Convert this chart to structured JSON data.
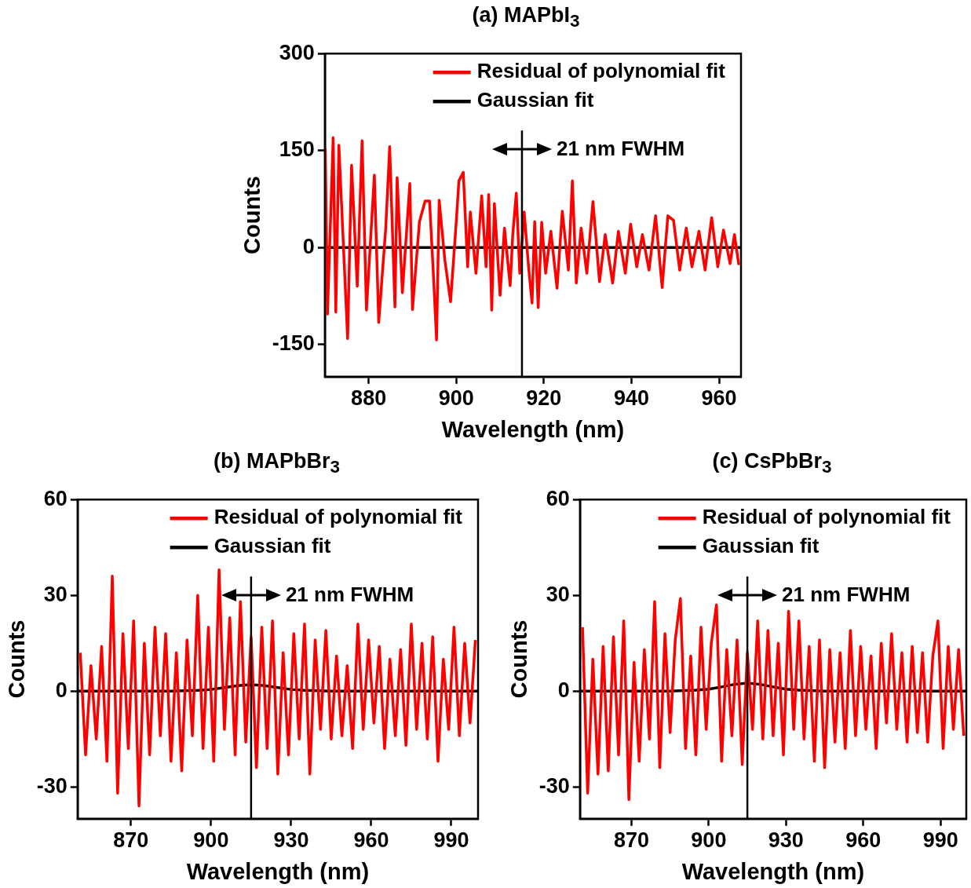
{
  "chart_data": [
    {
      "type": "line",
      "title": "(a) MAPbI$_{3}$",
      "xlabel": "Wavelength (nm)",
      "ylabel": "Counts",
      "xlim": [
        870,
        965
      ],
      "xticks": [
        880,
        900,
        920,
        940,
        960
      ],
      "ylim": [
        -200,
        300
      ],
      "yticks": [
        -150,
        0,
        150,
        300
      ],
      "grid": false,
      "legend": "top right",
      "series": [
        {
          "name": "Residual of polynomial fit",
          "color": "#ff0000",
          "x": [
            870.1,
            870.6,
            871.9,
            872.5,
            873.2,
            875.2,
            876.1,
            877.4,
            878.5,
            879.5,
            881.3,
            882.3,
            883.9,
            884.8,
            886.0,
            886.5,
            887.7,
            889.4,
            890.0,
            891.6,
            892.9,
            893.9,
            894.8,
            895.5,
            896.1,
            897.4,
            898.7,
            900.0,
            900.6,
            901.6,
            902.6,
            903.2,
            904.5,
            905.8,
            906.8,
            907.4,
            908.1,
            908.7,
            910.0,
            911.0,
            912.3,
            912.9,
            913.7,
            914.5,
            915.5,
            916.5,
            917.3,
            917.9,
            918.7,
            919.5,
            920.4,
            921.6,
            923.0,
            924.2,
            925.6,
            926.5,
            927.4,
            928.5,
            929.8,
            931.2,
            932.7,
            934.0,
            935.7,
            937.0,
            938.6,
            939.8,
            941.2,
            942.5,
            944.0,
            945.5,
            947.0,
            948.3,
            949.6,
            951.0,
            952.5,
            953.8,
            955.4,
            956.8,
            958.3,
            959.7,
            961.0,
            962.5,
            963.5,
            964.5
          ],
          "values": [
            154,
            -103,
            170,
            -100,
            158,
            -141,
            127,
            -60,
            165,
            -97,
            112,
            -116,
            30,
            156,
            -92,
            108,
            -70,
            99,
            -96,
            40,
            72,
            72,
            -45,
            -143,
            73,
            -20,
            -84,
            40,
            103,
            116,
            -30,
            55,
            -40,
            80,
            -30,
            82,
            -97,
            68,
            -74,
            30,
            -59,
            20,
            84,
            -40,
            55,
            -30,
            -86,
            40,
            -93,
            39,
            -40,
            25,
            -63,
            56,
            -35,
            103,
            -55,
            30,
            -40,
            71,
            -53,
            20,
            -55,
            25,
            -40,
            36,
            -30,
            20,
            -35,
            49,
            -62,
            49,
            42,
            -35,
            30,
            -30,
            25,
            -35,
            46,
            -30,
            27,
            -25,
            20,
            -27
          ]
        },
        {
          "name": "Gaussian fit",
          "color": "#000000",
          "x": [
            870,
            965
          ],
          "values": [
            0,
            0
          ]
        }
      ],
      "ref_lines": [
        {
          "axis": "x",
          "value": 915,
          "color": "#000000"
        }
      ],
      "annotations": [
        "21 nm FWHM"
      ]
    },
    {
      "type": "line",
      "title": "(b) MAPbBr$_{3}$",
      "xlabel": "Wavelength (nm)",
      "ylabel": "Counts",
      "xlim": [
        850,
        1000
      ],
      "xticks": [
        870,
        900,
        930,
        960,
        990
      ],
      "ylim": [
        -40,
        60
      ],
      "yticks": [
        -30,
        0,
        30,
        60
      ],
      "grid": false,
      "legend": "top right",
      "series": [
        {
          "name": "Residual of polynomial fit",
          "color": "#ff0000",
          "x": [
            851,
            853,
            855,
            857,
            859,
            861,
            863,
            865,
            867,
            869,
            871,
            873,
            875,
            877,
            879,
            881,
            883,
            885,
            887,
            889,
            891,
            893,
            895,
            897,
            899,
            901,
            903,
            905,
            907,
            909,
            911,
            913,
            915,
            917,
            919,
            921,
            923,
            925,
            927,
            929,
            931,
            933,
            935,
            937,
            939,
            941,
            943,
            945,
            947,
            949,
            951,
            953,
            955,
            957,
            959,
            961,
            963,
            965,
            967,
            969,
            971,
            973,
            975,
            977,
            979,
            981,
            983,
            985,
            987,
            989,
            991,
            993,
            995,
            997,
            999
          ],
          "values": [
            12,
            -20,
            8,
            -15,
            14,
            -22,
            36,
            -32,
            18,
            -18,
            22,
            -36,
            15,
            -20,
            20,
            -14,
            18,
            -22,
            12,
            -25,
            16,
            -14,
            30,
            -18,
            20,
            -22,
            38,
            -12,
            23,
            -20,
            28,
            -16,
            17,
            -24,
            20,
            -18,
            22,
            -26,
            12,
            -20,
            18,
            -15,
            21,
            -26,
            16,
            -12,
            19,
            -15,
            11,
            -14,
            8,
            -18,
            21,
            -12,
            16,
            -10,
            14,
            -18,
            10,
            -14,
            13,
            -17,
            21,
            -12,
            15,
            -15,
            17,
            -22,
            10,
            -12,
            20,
            -14,
            15,
            -10,
            16
          ]
        },
        {
          "name": "Gaussian fit",
          "color": "#000000",
          "x": [
            850,
            885,
            895,
            900,
            905,
            910,
            915,
            920,
            925,
            930,
            935,
            945,
            1000
          ],
          "values": [
            0,
            0,
            0.2,
            0.5,
            1.1,
            1.7,
            2,
            1.7,
            1.1,
            0.5,
            0.2,
            0,
            0
          ]
        }
      ],
      "ref_lines": [
        {
          "axis": "x",
          "value": 915,
          "color": "#000000"
        }
      ],
      "annotations": [
        "21 nm FWHM"
      ]
    },
    {
      "type": "line",
      "title": "(c) CsPbBr$_{3}$",
      "xlabel": "Wavelength (nm)",
      "ylabel": "Counts",
      "xlim": [
        850,
        1000
      ],
      "xticks": [
        870,
        900,
        930,
        960,
        990
      ],
      "ylim": [
        -40,
        60
      ],
      "yticks": [
        -30,
        0,
        30,
        60
      ],
      "grid": false,
      "legend": "top right",
      "series": [
        {
          "name": "Residual of polynomial fit",
          "color": "#ff0000",
          "x": [
            851,
            853,
            855,
            857,
            859,
            861,
            863,
            865,
            867,
            869,
            871,
            873,
            875,
            877,
            879,
            881,
            883,
            885,
            887,
            889,
            891,
            893,
            895,
            897,
            899,
            901,
            903,
            905,
            907,
            909,
            911,
            913,
            915,
            917,
            919,
            921,
            923,
            925,
            927,
            929,
            931,
            933,
            935,
            937,
            939,
            941,
            943,
            945,
            947,
            949,
            951,
            953,
            955,
            957,
            959,
            961,
            963,
            965,
            967,
            969,
            971,
            973,
            975,
            977,
            979,
            981,
            983,
            985,
            987,
            989,
            991,
            993,
            995,
            997,
            999
          ],
          "values": [
            20,
            -32,
            10,
            -26,
            14,
            -25,
            17,
            -20,
            22,
            -34,
            9,
            -22,
            13,
            -15,
            28,
            -24,
            18,
            -13,
            16,
            29,
            -18,
            11,
            -20,
            20,
            -12,
            15,
            27,
            -22,
            13,
            -14,
            16,
            -23,
            12,
            -12,
            22,
            -15,
            19,
            -14,
            15,
            -20,
            25,
            -12,
            22,
            -15,
            14,
            -22,
            16,
            -24,
            13,
            -16,
            12,
            -18,
            19,
            -14,
            14,
            -12,
            11,
            -18,
            15,
            -10,
            18,
            -12,
            12,
            -16,
            14,
            -13,
            12,
            -16,
            11,
            22,
            -18,
            14,
            -12,
            13,
            -14
          ]
        },
        {
          "name": "Gaussian fit",
          "color": "#000000",
          "x": [
            850,
            885,
            895,
            900,
            905,
            910,
            915,
            920,
            925,
            930,
            935,
            945,
            1000
          ],
          "values": [
            0,
            0,
            0.3,
            0.6,
            1.3,
            2.1,
            2.5,
            2.1,
            1.3,
            0.6,
            0.3,
            0,
            0
          ]
        }
      ],
      "ref_lines": [
        {
          "axis": "x",
          "value": 915,
          "color": "#000000"
        }
      ],
      "annotations": [
        "21 nm FWHM"
      ]
    }
  ]
}
